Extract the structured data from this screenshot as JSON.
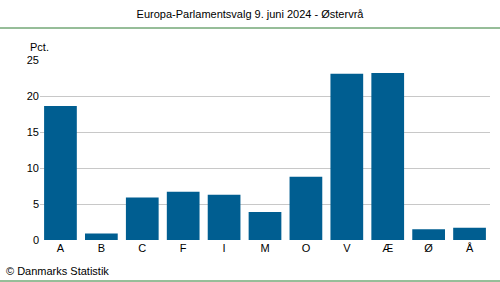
{
  "chart_data": {
    "type": "bar",
    "title": "Europa-Parlamentsvalg 9. juni 2024 - Østervrå",
    "ylabel": "Pct.",
    "source": "© Danmarks Statistik",
    "categories": [
      "A",
      "B",
      "C",
      "F",
      "I",
      "M",
      "O",
      "V",
      "Æ",
      "Ø",
      "Å"
    ],
    "values": [
      18.6,
      0.9,
      5.9,
      6.7,
      6.3,
      3.9,
      8.8,
      23.1,
      23.2,
      1.5,
      1.7
    ],
    "color": "#005e91",
    "ylim": [
      0,
      25
    ],
    "yticks": [
      0,
      5,
      10,
      15,
      20,
      25
    ],
    "grid": true
  }
}
